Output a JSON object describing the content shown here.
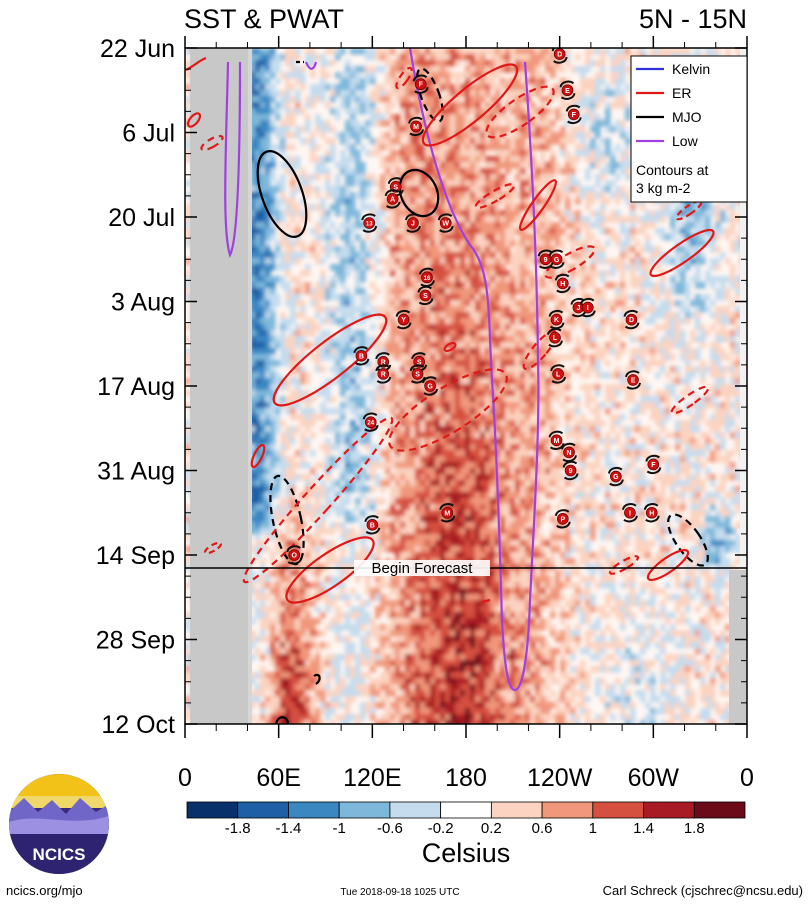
{
  "header": {
    "title_left": "SST & PWAT",
    "title_right": "5N - 15N"
  },
  "chart_data": {
    "type": "heatmap",
    "title": "SST & PWAT",
    "region": "5N - 15N",
    "x_ticks": [
      "0",
      "60E",
      "120E",
      "180",
      "120W",
      "60W",
      "0"
    ],
    "y_ticks": [
      "22 Jun",
      "6 Jul",
      "20 Jul",
      "3 Aug",
      "17 Aug",
      "31 Aug",
      "14 Sep",
      "28 Sep",
      "12 Oct"
    ],
    "forecast_label": "Begin Forecast",
    "forecast_start": "2018-09-18",
    "colorbar": {
      "label": "Celsius",
      "ticks": [
        "-1.8",
        "-1.4",
        "-1",
        "-0.6",
        "-0.2",
        "0.2",
        "0.6",
        "1",
        "1.4",
        "1.8"
      ],
      "colors": [
        "#08306b",
        "#1f5fa6",
        "#3a87c2",
        "#7db7da",
        "#c4dcee",
        "#ffffff",
        "#fbd3c0",
        "#f0977c",
        "#d5503f",
        "#a81a24",
        "#6b0b1a"
      ]
    },
    "legend": {
      "position": "top-right",
      "entries": [
        {
          "name": "Kelvin",
          "color": "#3030e0"
        },
        {
          "name": "ER",
          "color": "#e01818"
        },
        {
          "name": "MJO",
          "color": "#000000"
        },
        {
          "name": "Low",
          "color": "#a040e0"
        }
      ],
      "note_line1": "Contours at",
      "note_line2": "3 kg m-2"
    },
    "storm_markers": [
      {
        "label": "D",
        "lon": -120,
        "date": "Jun 23"
      },
      {
        "label": "F",
        "lon": 151,
        "date": "Jun 28"
      },
      {
        "label": "E",
        "lon": -115,
        "date": "Jun 29"
      },
      {
        "label": "F",
        "lon": -111,
        "date": "Jul 3"
      },
      {
        "label": "M",
        "lon": 148,
        "date": "Jul 5"
      },
      {
        "label": "S",
        "lon": 135,
        "date": "Jul 15"
      },
      {
        "label": "A",
        "lon": 133,
        "date": "Jul 17"
      },
      {
        "label": "13",
        "lon": 118,
        "date": "Jul 21"
      },
      {
        "label": "J",
        "lon": 146,
        "date": "Jul 21"
      },
      {
        "label": "W",
        "lon": 167,
        "date": "Jul 21"
      },
      {
        "label": "9",
        "lon": -129,
        "date": "Jul 27"
      },
      {
        "label": "G",
        "lon": -122,
        "date": "Jul 27"
      },
      {
        "label": "16",
        "lon": 155,
        "date": "Jul 30"
      },
      {
        "label": "H",
        "lon": -118,
        "date": "Jul 31"
      },
      {
        "label": "S",
        "lon": 154,
        "date": "Aug 2"
      },
      {
        "label": "J",
        "lon": -108,
        "date": "Aug 4"
      },
      {
        "label": "I",
        "lon": -102,
        "date": "Aug 4"
      },
      {
        "label": "K",
        "lon": -122,
        "date": "Aug 6"
      },
      {
        "label": "Y",
        "lon": 140,
        "date": "Aug 6"
      },
      {
        "label": "D",
        "lon": -74,
        "date": "Aug 6"
      },
      {
        "label": "L",
        "lon": -123,
        "date": "Aug 9"
      },
      {
        "label": "B",
        "lon": 113,
        "date": "Aug 12"
      },
      {
        "label": "R",
        "lon": 127,
        "date": "Aug 13"
      },
      {
        "label": "S",
        "lon": 150,
        "date": "Aug 13"
      },
      {
        "label": "R",
        "lon": 127,
        "date": "Aug 15"
      },
      {
        "label": "S",
        "lon": 149,
        "date": "Aug 15"
      },
      {
        "label": "G",
        "lon": 157,
        "date": "Aug 17"
      },
      {
        "label": "L",
        "lon": -121,
        "date": "Aug 15"
      },
      {
        "label": "E",
        "lon": -73,
        "date": "Aug 16"
      },
      {
        "label": "24",
        "lon": 119,
        "date": "Aug 23"
      },
      {
        "label": "M",
        "lon": -122,
        "date": "Aug 26"
      },
      {
        "label": "N",
        "lon": -114,
        "date": "Aug 28"
      },
      {
        "label": "9",
        "lon": -113,
        "date": "Aug 31"
      },
      {
        "label": "F",
        "lon": -60,
        "date": "Aug 30"
      },
      {
        "label": "G",
        "lon": -84,
        "date": "Sep 1"
      },
      {
        "label": "M",
        "lon": 168,
        "date": "Sep 7"
      },
      {
        "label": "P",
        "lon": -118,
        "date": "Sep 8"
      },
      {
        "label": "B",
        "lon": 120,
        "date": "Sep 9"
      },
      {
        "label": "H",
        "lon": -61,
        "date": "Sep 7"
      },
      {
        "label": "I",
        "lon": -75,
        "date": "Sep 7"
      },
      {
        "label": "O",
        "lon": 70,
        "date": "Sep 14"
      }
    ]
  },
  "footer": {
    "left": "ncics.org/mjo",
    "center": "Tue 2018-09-18 1025 UTC",
    "right": "Carl Schreck (cjschrec@ncsu.edu)",
    "logo_text": "NCICS"
  }
}
